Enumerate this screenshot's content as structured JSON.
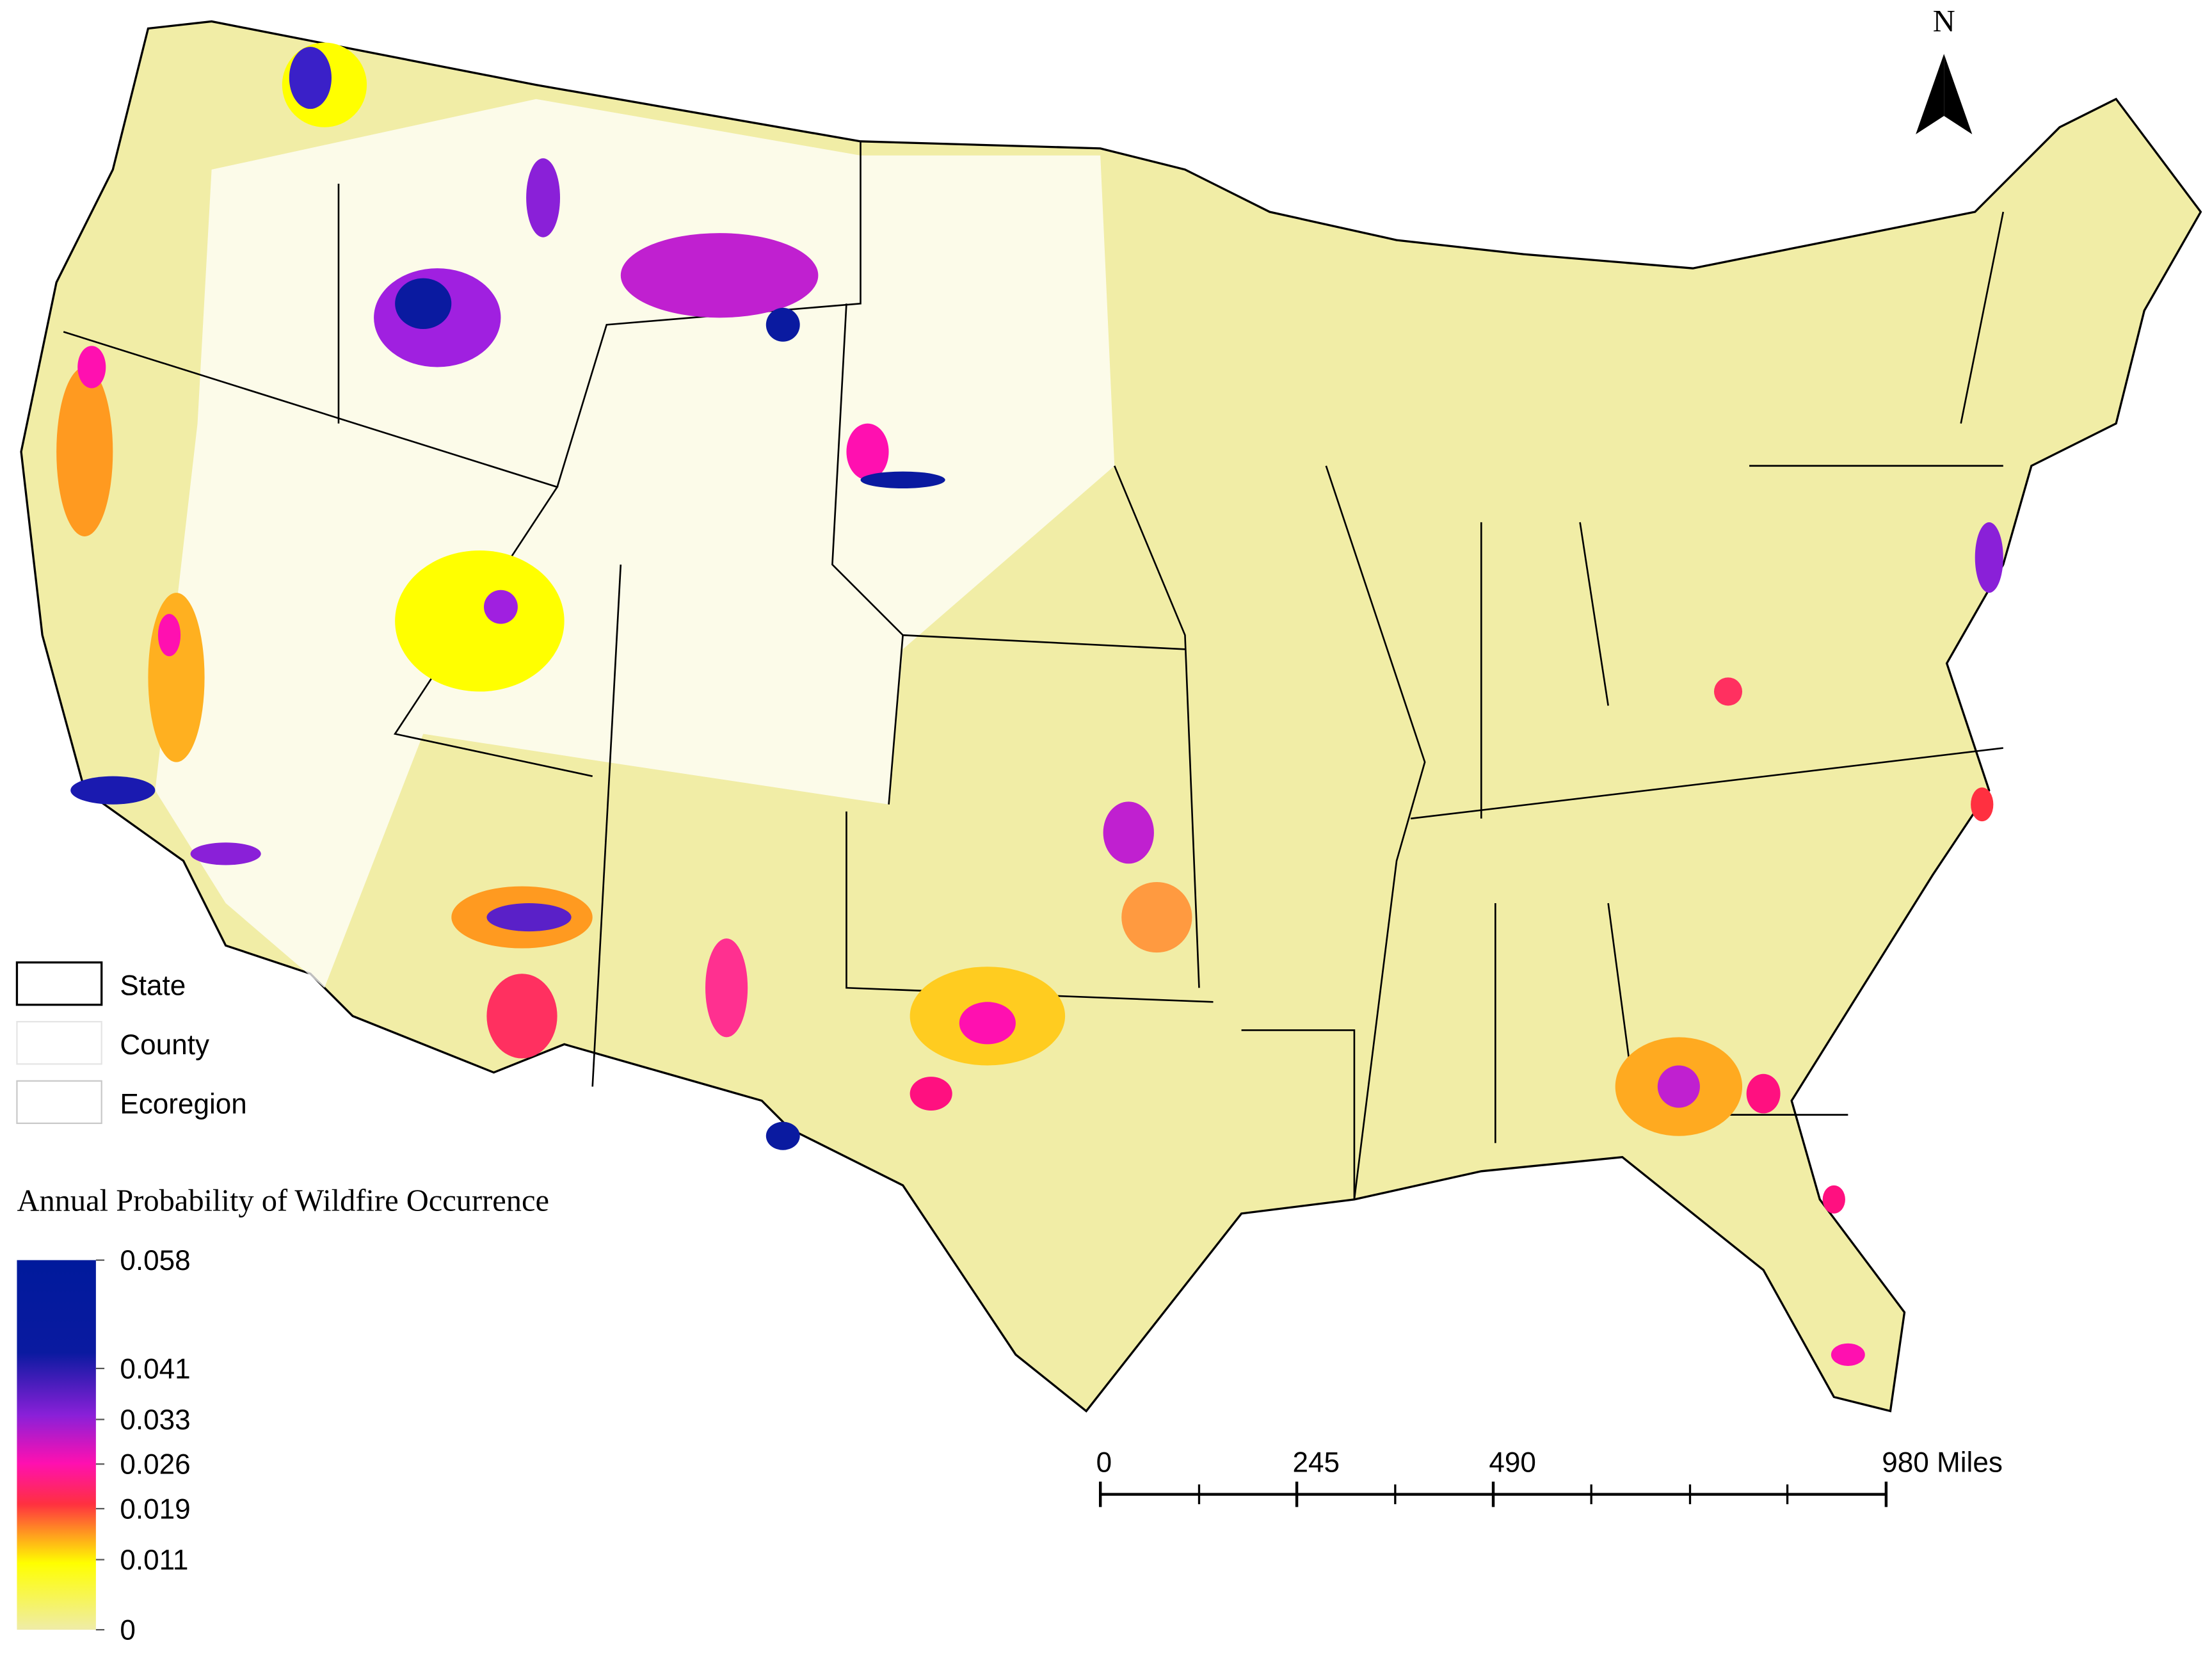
{
  "north_label": "N",
  "legend": {
    "items": [
      "State",
      "County",
      "Ecoregion"
    ]
  },
  "colorbar": {
    "title": "Annual Probability of Wildfire Occurrence",
    "lim": [
      0,
      0.058
    ],
    "ticks": [
      0.058,
      0.041,
      0.033,
      0.026,
      0.019,
      0.011,
      0
    ]
  },
  "scale_bar": {
    "lim": [
      0,
      980
    ],
    "ticks": [
      0,
      245,
      490,
      {
        "value": 980,
        "label": "980 Miles"
      }
    ]
  }
}
